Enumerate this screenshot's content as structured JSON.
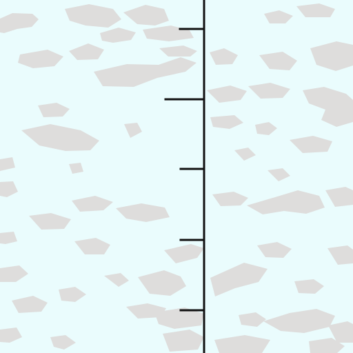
{
  "map": {
    "colors": {
      "water": "#eafcfd",
      "ice": "#dedddc",
      "line": "#111111"
    },
    "ruler": {
      "ticks": [
        {
          "id": "tick-1",
          "label": ""
        },
        {
          "id": "tick-2",
          "label": ""
        },
        {
          "id": "tick-3",
          "label": ""
        },
        {
          "id": "tick-4",
          "label": ""
        },
        {
          "id": "tick-5",
          "label": ""
        }
      ]
    }
  }
}
